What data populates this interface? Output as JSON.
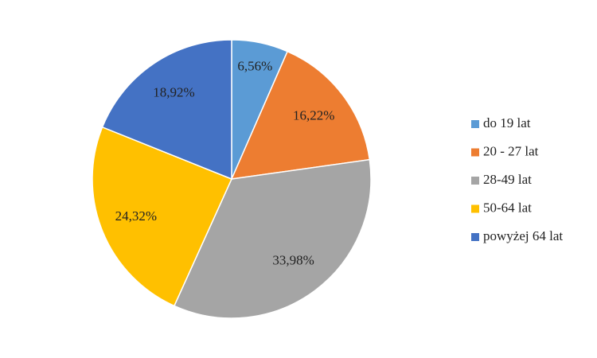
{
  "chart_data": {
    "type": "pie",
    "categories": [
      "do 19 lat",
      "20 - 27 lat",
      "28-49 lat",
      "50-64 lat",
      "powyżej 64 lat"
    ],
    "values": [
      6.56,
      16.22,
      33.98,
      24.32,
      18.92
    ],
    "value_labels": [
      "6,56%",
      "16,22%",
      "33,98%",
      "24,32%",
      "18,92%"
    ],
    "colors": [
      "#5b9bd5",
      "#ed7d31",
      "#a5a5a5",
      "#ffc000",
      "#4472c4"
    ],
    "legend": "right"
  }
}
